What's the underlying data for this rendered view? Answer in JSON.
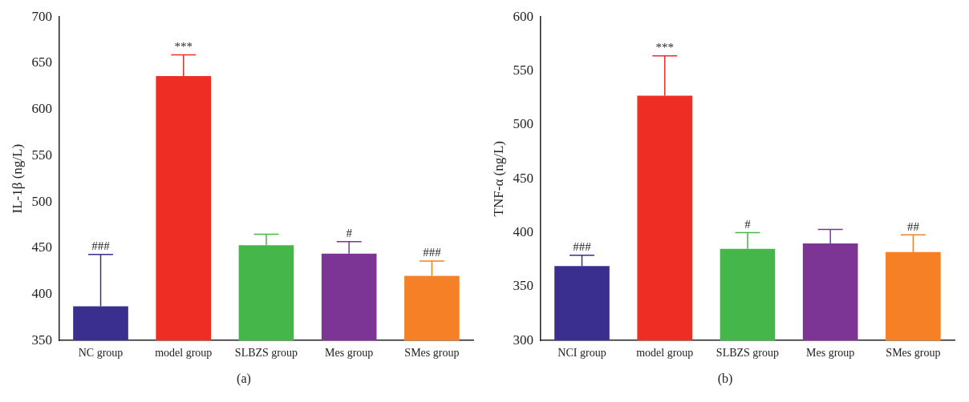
{
  "chart_data": [
    {
      "type": "bar",
      "ylabel": "IL-1β (ng/L)",
      "categories": [
        "NC group",
        "model group",
        "SLBZS group",
        "Mes group",
        "SMes group"
      ],
      "values": [
        387,
        636,
        453,
        444,
        420
      ],
      "colors": [
        "#3a2e8f",
        "#ee2e24",
        "#45b649",
        "#7c3595",
        "#f58025"
      ],
      "errors": [
        [
          387,
          443
        ],
        [
          636,
          659
        ],
        [
          453,
          465
        ],
        [
          444,
          457
        ],
        [
          420,
          436
        ]
      ],
      "ylim": [
        350,
        700
      ],
      "yticks": [
        350,
        400,
        450,
        500,
        550,
        600,
        650,
        700
      ],
      "grid": false,
      "legend": false,
      "annotations": [
        {
          "text": "###",
          "x": "NC group",
          "y": 443
        },
        {
          "text": "***",
          "x": "model group",
          "y": 659
        },
        {
          "text": "#",
          "x": "Mes group",
          "y": 457
        },
        {
          "text": "###",
          "x": "SMes group",
          "y": 436
        },
        "(a)"
      ]
    },
    {
      "type": "bar",
      "ylabel": "TNF-α (ng/L)",
      "categories": [
        "NCI group",
        "model group",
        "SLBZS group",
        "Mes group",
        "SMes group"
      ],
      "values": [
        369,
        527,
        385,
        390,
        382
      ],
      "colors": [
        "#3a2e8f",
        "#ee2e24",
        "#45b649",
        "#7c3595",
        "#f58025"
      ],
      "errors": [
        [
          369,
          379
        ],
        [
          527,
          564
        ],
        [
          385,
          400
        ],
        [
          390,
          403
        ],
        [
          382,
          398
        ]
      ],
      "ylim": [
        300,
        600
      ],
      "yticks": [
        300,
        350,
        400,
        450,
        500,
        550,
        600
      ],
      "grid": false,
      "legend": false,
      "annotations": [
        {
          "text": "###",
          "x": "NCI group",
          "y": 379
        },
        {
          "text": "***",
          "x": "model group",
          "y": 564
        },
        {
          "text": "#",
          "x": "SLBZS group",
          "y": 400
        },
        {
          "text": "##",
          "x": "SMes group",
          "y": 398
        },
        "(b)"
      ]
    }
  ]
}
